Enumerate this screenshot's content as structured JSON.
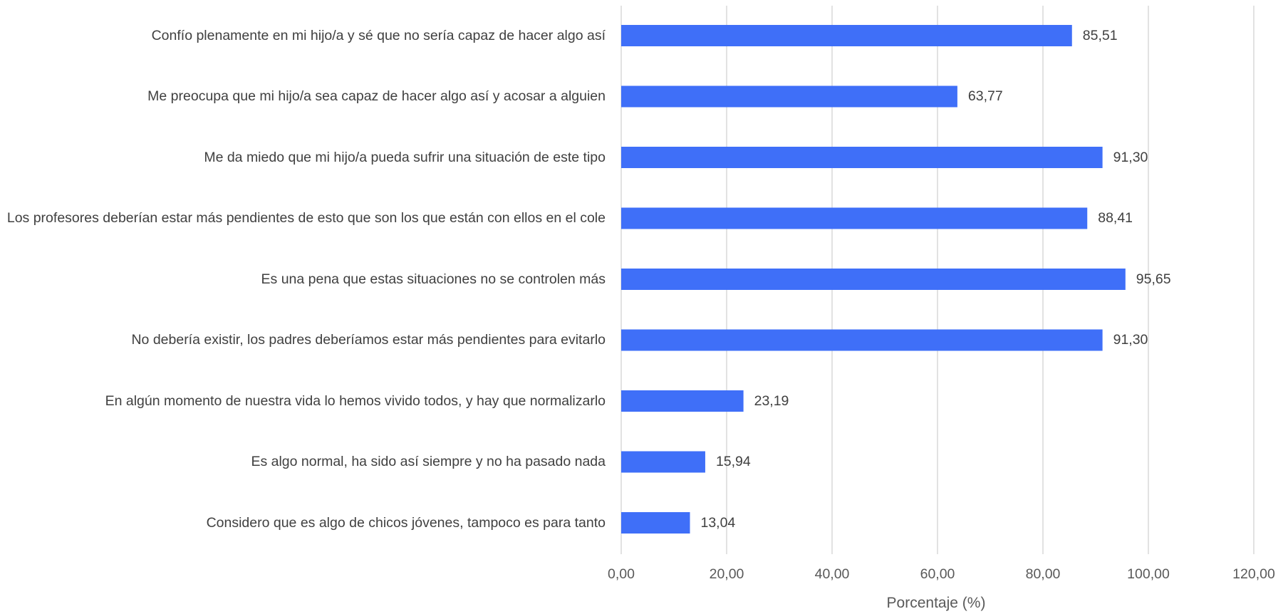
{
  "chart_data": {
    "type": "bar",
    "orientation": "horizontal",
    "categories": [
      "Confío plenamente en mi hijo/a y sé que no sería capaz de hacer algo así",
      "Me preocupa que mi hijo/a sea capaz de hacer algo así y acosar a alguien",
      "Me da miedo que mi hijo/a pueda sufrir una situación de este tipo",
      "Los profesores deberían estar más pendientes de esto que son los que están con ellos en el cole",
      "Es una pena que estas situaciones no se controlen más",
      "No debería existir, los padres deberíamos estar más pendientes para evitarlo",
      "En algún momento de nuestra vida lo hemos vivido todos, y hay que normalizarlo",
      "Es algo normal, ha sido así siempre y no ha pasado nada",
      "Considero que es algo de chicos jóvenes, tampoco es para tanto"
    ],
    "values": [
      85.51,
      63.77,
      91.3,
      88.41,
      95.65,
      91.3,
      23.19,
      15.94,
      13.04
    ],
    "value_labels": [
      "85,51",
      "63,77",
      "91,30",
      "88,41",
      "95,65",
      "91,30",
      "23,19",
      "15,94",
      "13,04"
    ],
    "xlim": [
      0,
      120
    ],
    "x_ticks": [
      0,
      20,
      40,
      60,
      80,
      100,
      120
    ],
    "x_tick_labels": [
      "0,00",
      "20,00",
      "40,00",
      "60,00",
      "80,00",
      "100,00",
      "120,00"
    ],
    "xlabel": "Porcentaje (%)",
    "ylabel": "",
    "title": "",
    "grid": "vertical",
    "legend": "none",
    "bar_color": "#3f6ff8",
    "grid_color": "#d9d9d9",
    "text_color": "#404040"
  }
}
